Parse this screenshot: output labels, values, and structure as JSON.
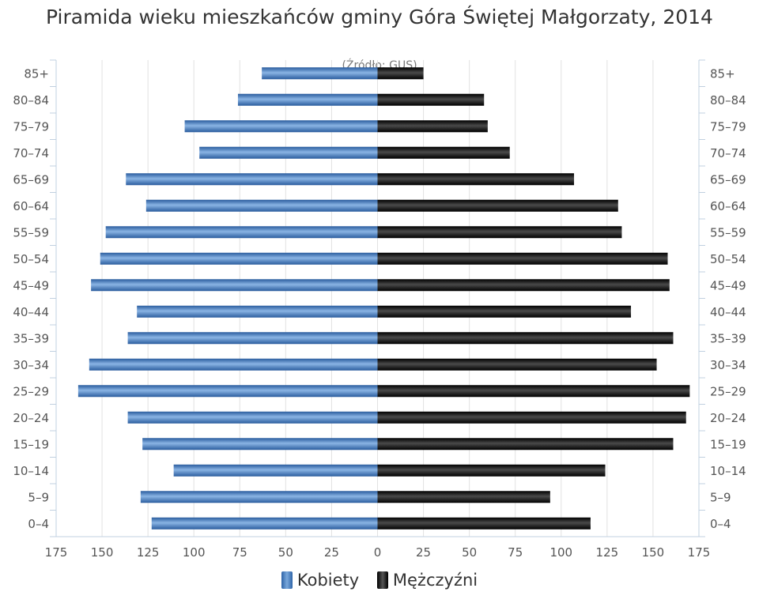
{
  "chart_data": {
    "type": "bar",
    "orientation": "horizontal-population-pyramid",
    "title": "Piramida wieku mieszkańców gminy Góra Świętej Małgorzaty, 2014",
    "subtitle": "(Źródło: GUS)",
    "categories": [
      "85+",
      "80–84",
      "75–79",
      "70–74",
      "65–69",
      "60–64",
      "55–59",
      "50–54",
      "45–49",
      "40–44",
      "35–39",
      "30–34",
      "25–29",
      "20–24",
      "15–19",
      "10–14",
      "5–9",
      "0–4"
    ],
    "series": [
      {
        "name": "Kobiety",
        "values": [
          63,
          76,
          105,
          97,
          137,
          126,
          148,
          151,
          156,
          131,
          136,
          157,
          163,
          136,
          128,
          111,
          129,
          123
        ],
        "color": "#3a74be"
      },
      {
        "name": "Mężczyźni",
        "values": [
          25,
          58,
          60,
          72,
          107,
          131,
          133,
          158,
          159,
          138,
          161,
          152,
          170,
          168,
          161,
          124,
          94,
          116
        ],
        "color": "#111111"
      }
    ],
    "xlim": [
      -175,
      175
    ],
    "x_ticks": [
      -175,
      -150,
      -125,
      -100,
      -75,
      -50,
      -25,
      0,
      25,
      50,
      75,
      100,
      125,
      150,
      175
    ],
    "x_tick_labels": [
      "175",
      "150",
      "125",
      "100",
      "75",
      "50",
      "25",
      "0",
      "25",
      "50",
      "75",
      "100",
      "125",
      "150",
      "175"
    ],
    "grid": true,
    "legend": "bottom-center"
  }
}
